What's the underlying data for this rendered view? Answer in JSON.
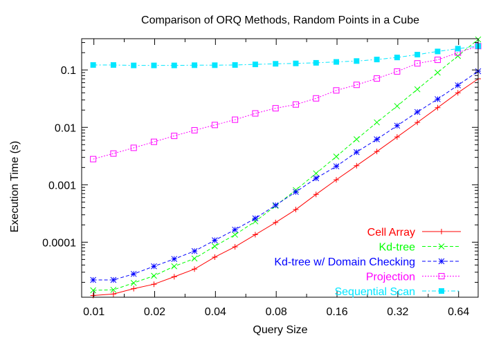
{
  "chart_data": {
    "type": "line",
    "title": "Comparison of ORQ Methods, Random Points in a Cube",
    "xlabel": "Query Size",
    "ylabel": "Execution Time (s)",
    "x_scale": "log2",
    "y_scale": "log10",
    "xlim": [
      0.0087,
      0.8
    ],
    "ylim": [
      1.1e-05,
      0.35
    ],
    "x_ticks": [
      0.01,
      0.02,
      0.04,
      0.08,
      0.16,
      0.32,
      0.64
    ],
    "x_tick_labels": [
      "0.01",
      "0.02",
      "0.04",
      "0.08",
      "0.16",
      "0.32",
      "0.64"
    ],
    "y_ticks": [
      0.0001,
      0.001,
      0.01,
      0.1
    ],
    "y_tick_labels": [
      "0.0001",
      "0.001",
      "0.01",
      "0.1"
    ],
    "legend_position": "bottom-right",
    "grid": false,
    "x": [
      0.00992,
      0.0125,
      0.01575,
      0.01984,
      0.025,
      0.0315,
      0.0397,
      0.05,
      0.063,
      0.0794,
      0.1,
      0.126,
      0.1587,
      0.2,
      0.252,
      0.3175,
      0.4,
      0.504,
      0.635,
      0.8
    ],
    "series": [
      {
        "name": "Cell Array",
        "color": "#ff0000",
        "marker": "plus",
        "dash": "solid",
        "values": [
          1.18e-05,
          1.25e-05,
          1.55e-05,
          1.85e-05,
          2.5e-05,
          3.4e-05,
          5.5e-05,
          8.3e-05,
          0.000135,
          0.00022,
          0.00037,
          0.00068,
          0.00122,
          0.00215,
          0.0038,
          0.0068,
          0.0122,
          0.022,
          0.04,
          0.07
        ]
      },
      {
        "name": "Kd-tree",
        "color": "#00ff00",
        "marker": "x",
        "dash": "dashed",
        "values": [
          1.45e-05,
          1.48e-05,
          1.95e-05,
          2.6e-05,
          3.8e-05,
          5.2e-05,
          8.5e-05,
          0.000135,
          0.00023,
          0.00043,
          0.00081,
          0.00158,
          0.0031,
          0.0062,
          0.0122,
          0.0235,
          0.046,
          0.09,
          0.175,
          0.34
        ]
      },
      {
        "name": "Kd-tree w/ Domain Checking",
        "color": "#0000ff",
        "marker": "asterisk",
        "dash": "dashed",
        "values": [
          2.2e-05,
          2.2e-05,
          2.8e-05,
          3.8e-05,
          5.1e-05,
          7e-05,
          0.000108,
          0.000165,
          0.00026,
          0.00044,
          0.00075,
          0.0013,
          0.0021,
          0.0037,
          0.0062,
          0.0107,
          0.0185,
          0.031,
          0.054,
          0.095
        ]
      },
      {
        "name": "Projection",
        "color": "#ff00ff",
        "marker": "open-square",
        "dash": "dotted",
        "values": [
          0.0028,
          0.0035,
          0.0044,
          0.0056,
          0.0071,
          0.0089,
          0.011,
          0.0136,
          0.0175,
          0.0215,
          0.025,
          0.032,
          0.044,
          0.055,
          0.071,
          0.094,
          0.13,
          0.15,
          0.2,
          0.26
        ]
      },
      {
        "name": "Sequential Scan",
        "color": "#00e6ff",
        "marker": "filled-square",
        "dash": "dash-dot",
        "values": [
          0.122,
          0.122,
          0.12,
          0.12,
          0.12,
          0.121,
          0.121,
          0.122,
          0.125,
          0.128,
          0.13,
          0.133,
          0.138,
          0.143,
          0.152,
          0.165,
          0.185,
          0.21,
          0.235,
          0.26
        ]
      }
    ]
  }
}
